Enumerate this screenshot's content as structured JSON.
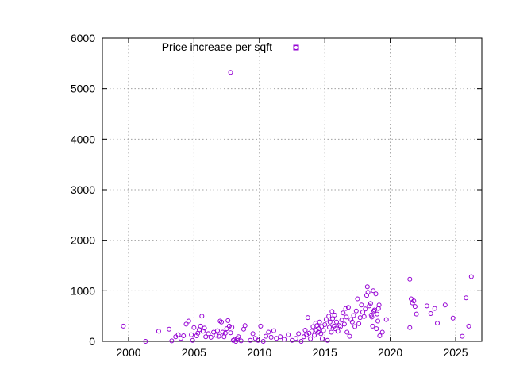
{
  "chart_data": {
    "type": "scatter",
    "title": "",
    "xlabel": "",
    "ylabel": "",
    "xlim": [
      1998,
      2027
    ],
    "ylim": [
      0,
      6000
    ],
    "xticks": [
      2000,
      2005,
      2010,
      2015,
      2020,
      2025
    ],
    "yticks": [
      0,
      1000,
      2000,
      3000,
      4000,
      5000,
      6000
    ],
    "grid": true,
    "legend_position": "top",
    "marker": "open-circle",
    "series": [
      {
        "name": "Price increase per sqft",
        "color": "#9400d3",
        "points": [
          [
            1999.6,
            300
          ],
          [
            2001.3,
            0
          ],
          [
            2002.3,
            200
          ],
          [
            2003.1,
            240
          ],
          [
            2003.3,
            10
          ],
          [
            2003.6,
            90
          ],
          [
            2003.8,
            130
          ],
          [
            2004.0,
            60
          ],
          [
            2004.2,
            110
          ],
          [
            2004.4,
            340
          ],
          [
            2004.6,
            400
          ],
          [
            2004.8,
            130
          ],
          [
            2004.9,
            20
          ],
          [
            2005.0,
            270
          ],
          [
            2005.2,
            110
          ],
          [
            2005.3,
            160
          ],
          [
            2005.4,
            230
          ],
          [
            2005.5,
            300
          ],
          [
            2005.6,
            500
          ],
          [
            2005.7,
            200
          ],
          [
            2005.8,
            260
          ],
          [
            2005.9,
            90
          ],
          [
            2006.1,
            150
          ],
          [
            2006.3,
            80
          ],
          [
            2006.5,
            180
          ],
          [
            2006.7,
            120
          ],
          [
            2006.8,
            210
          ],
          [
            2006.9,
            100
          ],
          [
            2007.0,
            400
          ],
          [
            2007.1,
            380
          ],
          [
            2007.2,
            180
          ],
          [
            2007.3,
            90
          ],
          [
            2007.4,
            160
          ],
          [
            2007.5,
            250
          ],
          [
            2007.6,
            410
          ],
          [
            2007.7,
            300
          ],
          [
            2007.8,
            170
          ],
          [
            2007.9,
            280
          ],
          [
            2008.0,
            20
          ],
          [
            2008.1,
            40
          ],
          [
            2008.2,
            0
          ],
          [
            2008.3,
            60
          ],
          [
            2008.4,
            90
          ],
          [
            2008.6,
            10
          ],
          [
            2008.8,
            240
          ],
          [
            2008.9,
            310
          ],
          [
            2007.8,
            5320
          ],
          [
            2009.3,
            20
          ],
          [
            2009.5,
            150
          ],
          [
            2009.7,
            60
          ],
          [
            2009.9,
            20
          ],
          [
            2010.1,
            300
          ],
          [
            2010.3,
            0
          ],
          [
            2010.5,
            100
          ],
          [
            2010.7,
            180
          ],
          [
            2010.9,
            80
          ],
          [
            2011.1,
            210
          ],
          [
            2011.3,
            60
          ],
          [
            2011.6,
            90
          ],
          [
            2011.9,
            40
          ],
          [
            2012.2,
            130
          ],
          [
            2012.5,
            20
          ],
          [
            2012.8,
            60
          ],
          [
            2013.0,
            150
          ],
          [
            2013.2,
            0
          ],
          [
            2013.4,
            90
          ],
          [
            2013.5,
            220
          ],
          [
            2013.6,
            130
          ],
          [
            2013.7,
            470
          ],
          [
            2013.8,
            160
          ],
          [
            2013.9,
            50
          ],
          [
            2014.0,
            200
          ],
          [
            2014.1,
            290
          ],
          [
            2014.2,
            120
          ],
          [
            2014.3,
            360
          ],
          [
            2014.35,
            220
          ],
          [
            2014.4,
            310
          ],
          [
            2014.5,
            180
          ],
          [
            2014.55,
            250
          ],
          [
            2014.6,
            380
          ],
          [
            2014.7,
            150
          ],
          [
            2014.75,
            290
          ],
          [
            2014.8,
            50
          ],
          [
            2014.9,
            210
          ],
          [
            2015.0,
            330
          ],
          [
            2015.1,
            430
          ],
          [
            2015.2,
            20
          ],
          [
            2015.3,
            500
          ],
          [
            2015.35,
            280
          ],
          [
            2015.4,
            380
          ],
          [
            2015.5,
            180
          ],
          [
            2015.55,
            590
          ],
          [
            2015.6,
            450
          ],
          [
            2015.7,
            300
          ],
          [
            2015.75,
            520
          ],
          [
            2015.8,
            250
          ],
          [
            2015.9,
            380
          ],
          [
            2016.0,
            200
          ],
          [
            2016.1,
            310
          ],
          [
            2016.2,
            290
          ],
          [
            2016.3,
            420
          ],
          [
            2016.4,
            560
          ],
          [
            2016.5,
            340
          ],
          [
            2016.6,
            650
          ],
          [
            2016.65,
            480
          ],
          [
            2016.7,
            180
          ],
          [
            2016.8,
            670
          ],
          [
            2016.9,
            100
          ],
          [
            2017.0,
            430
          ],
          [
            2017.1,
            380
          ],
          [
            2017.2,
            510
          ],
          [
            2017.3,
            290
          ],
          [
            2017.4,
            600
          ],
          [
            2017.5,
            840
          ],
          [
            2017.6,
            350
          ],
          [
            2017.7,
            470
          ],
          [
            2017.8,
            720
          ],
          [
            2017.9,
            580
          ],
          [
            2018.0,
            490
          ],
          [
            2018.1,
            640
          ],
          [
            2018.2,
            910
          ],
          [
            2018.25,
            1080
          ],
          [
            2018.3,
            970
          ],
          [
            2018.4,
            700
          ],
          [
            2018.5,
            750
          ],
          [
            2018.55,
            520
          ],
          [
            2018.6,
            480
          ],
          [
            2018.65,
            300
          ],
          [
            2018.7,
            1000
          ],
          [
            2018.75,
            600
          ],
          [
            2018.8,
            620
          ],
          [
            2018.9,
            940
          ],
          [
            2018.95,
            250
          ],
          [
            2019.0,
            540
          ],
          [
            2019.05,
            400
          ],
          [
            2019.1,
            650
          ],
          [
            2019.15,
            720
          ],
          [
            2019.2,
            110
          ],
          [
            2019.4,
            180
          ],
          [
            2019.7,
            430
          ],
          [
            2021.5,
            1230
          ],
          [
            2021.5,
            270
          ],
          [
            2021.6,
            840
          ],
          [
            2021.7,
            760
          ],
          [
            2021.8,
            800
          ],
          [
            2021.9,
            690
          ],
          [
            2022.0,
            540
          ],
          [
            2022.8,
            700
          ],
          [
            2023.1,
            550
          ],
          [
            2023.4,
            650
          ],
          [
            2023.6,
            360
          ],
          [
            2024.2,
            720
          ],
          [
            2024.8,
            460
          ],
          [
            2025.5,
            100
          ],
          [
            2025.8,
            860
          ],
          [
            2026.0,
            300
          ],
          [
            2026.2,
            1280
          ]
        ]
      }
    ]
  }
}
